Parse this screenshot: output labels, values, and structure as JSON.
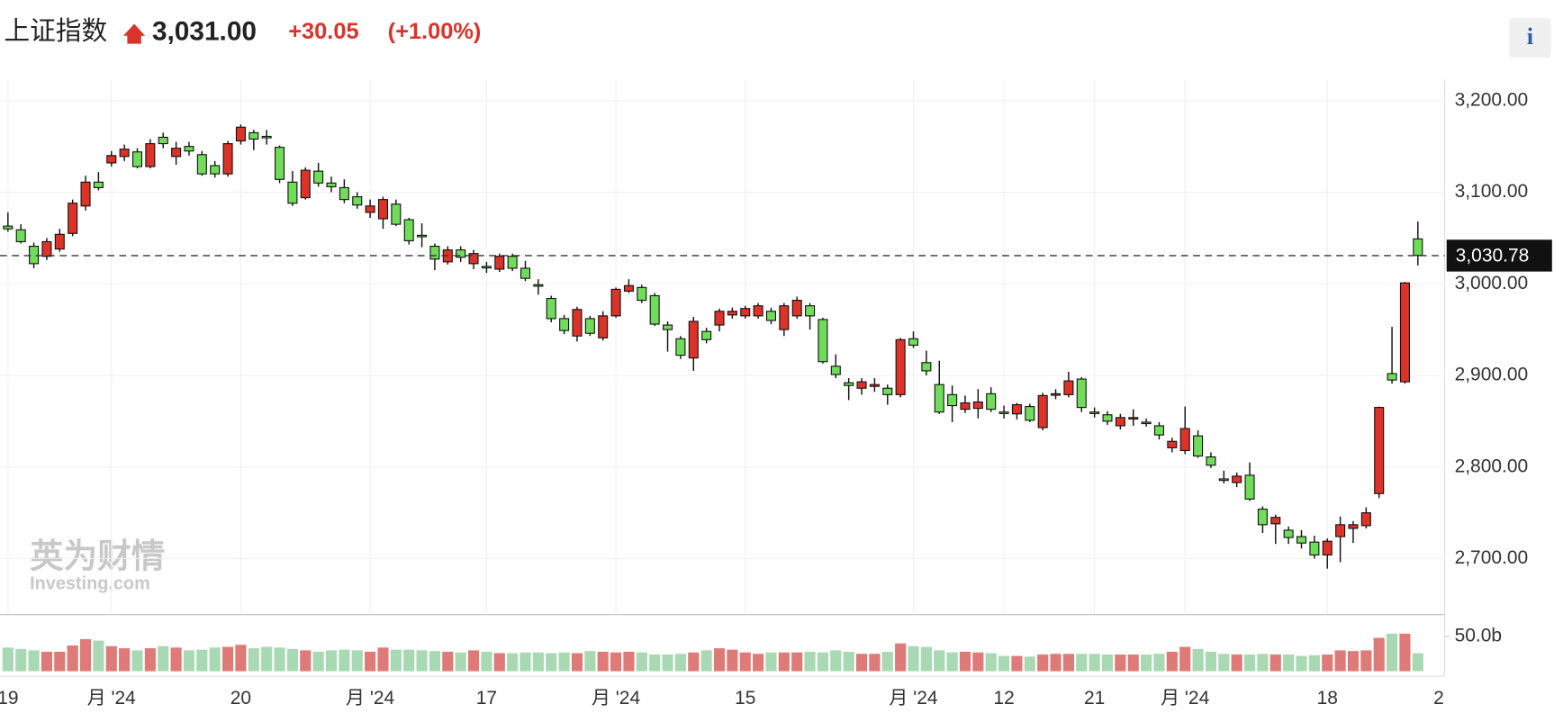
{
  "header": {
    "title": "上证指数",
    "price": "3,031.00",
    "change": "+30.05",
    "change_pct": "(+1.00%)",
    "info": "i"
  },
  "watermark": {
    "cn": "英为财情",
    "en": "Investing.com"
  },
  "chart_data": {
    "type": "candlestick",
    "up_color": "#dd3228",
    "down_color": "#6fdc5a",
    "volume_up_color": "#de7b78",
    "volume_down_color": "#a9d9b3",
    "ylim": [
      2640,
      3223
    ],
    "yticks": [
      {
        "value": 2700,
        "label": "2,700.00"
      },
      {
        "value": 2800,
        "label": "2,800.00"
      },
      {
        "value": 2900,
        "label": "2,900.00"
      },
      {
        "value": 3000,
        "label": "3,000.00"
      },
      {
        "value": 3100,
        "label": "3,100.00"
      },
      {
        "value": 3200,
        "label": "3,200.00"
      }
    ],
    "last_price": {
      "value": 3030.78,
      "label": "3,030.78"
    },
    "vlim": [
      0,
      80
    ],
    "vticks": [
      {
        "value": 50,
        "label": "50.0b"
      }
    ],
    "next_label": "2",
    "grid": true,
    "categories": [
      "19",
      null,
      null,
      null,
      null,
      null,
      null,
      null,
      "月 '24",
      null,
      null,
      null,
      null,
      null,
      null,
      null,
      null,
      null,
      "20",
      null,
      null,
      null,
      null,
      null,
      null,
      null,
      null,
      null,
      "月 '24",
      null,
      null,
      null,
      null,
      null,
      null,
      null,
      null,
      "17",
      null,
      null,
      null,
      null,
      null,
      null,
      null,
      null,
      null,
      "月 '24",
      null,
      null,
      null,
      null,
      null,
      null,
      null,
      null,
      null,
      "15",
      null,
      null,
      null,
      null,
      null,
      null,
      null,
      null,
      null,
      null,
      null,
      null,
      "月 '24",
      null,
      null,
      null,
      null,
      null,
      null,
      "12",
      null,
      null,
      null,
      null,
      null,
      null,
      "21",
      null,
      null,
      null,
      null,
      null,
      null,
      "月 '24",
      null,
      null,
      null,
      null,
      null,
      null,
      null,
      null,
      null,
      null,
      "18",
      null,
      null,
      null,
      null,
      null,
      null,
      null
    ],
    "open": [
      3063,
      3059,
      3041,
      3030,
      3038,
      3055,
      3085,
      3111,
      3132,
      3139,
      3144,
      3128,
      3160,
      3139,
      3150,
      3141,
      3129,
      3120,
      3156,
      3165,
      3161,
      3149,
      3111,
      3094,
      3123,
      3110,
      3105,
      3095,
      3078,
      3071,
      3087,
      3070,
      3053,
      3041,
      3024,
      3037,
      3022,
      3019,
      3016,
      3030,
      3017,
      2999,
      2984,
      2962,
      2943,
      2962,
      2941,
      2965,
      2992,
      2996,
      2987,
      2955,
      2940,
      2919,
      2948,
      2955,
      2966,
      2965,
      2965,
      2970,
      2950,
      2965,
      2976,
      2961,
      2910,
      2892,
      2886,
      2888,
      2886,
      2879,
      2940,
      2914,
      2890,
      2879,
      2863,
      2864,
      2880,
      2860,
      2858,
      2866,
      2843,
      2879,
      2879,
      2896,
      2860,
      2857,
      2845,
      2853,
      2849,
      2845,
      2821,
      2818,
      2834,
      2811,
      2787,
      2783,
      2791,
      2754,
      2738,
      2731,
      2724,
      2718,
      2704,
      2724,
      2733,
      2736,
      2771,
      2902,
      2893,
      3049
    ],
    "high": [
      3078,
      3065,
      3045,
      3050,
      3060,
      3092,
      3118,
      3122,
      3145,
      3152,
      3148,
      3158,
      3165,
      3155,
      3155,
      3145,
      3134,
      3156,
      3174,
      3168,
      3168,
      3151,
      3123,
      3127,
      3132,
      3117,
      3114,
      3100,
      3092,
      3095,
      3092,
      3072,
      3066,
      3044,
      3041,
      3041,
      3037,
      3024,
      3033,
      3033,
      3025,
      3005,
      2987,
      2966,
      2975,
      2965,
      2970,
      2996,
      3005,
      2999,
      2990,
      2959,
      2943,
      2964,
      2952,
      2973,
      2974,
      2976,
      2979,
      2974,
      2979,
      2986,
      2979,
      2963,
      2923,
      2897,
      2897,
      2897,
      2890,
      2941,
      2948,
      2927,
      2916,
      2889,
      2878,
      2885,
      2887,
      2867,
      2870,
      2869,
      2881,
      2885,
      2904,
      2898,
      2865,
      2861,
      2858,
      2863,
      2853,
      2849,
      2832,
      2866,
      2840,
      2816,
      2796,
      2794,
      2805,
      2757,
      2748,
      2735,
      2731,
      2725,
      2722,
      2746,
      2741,
      2756,
      2866,
      2953,
      3002,
      3068
    ],
    "low": [
      3057,
      3044,
      3017,
      3026,
      3035,
      3052,
      3080,
      3102,
      3128,
      3134,
      3126,
      3126,
      3148,
      3130,
      3140,
      3118,
      3116,
      3117,
      3152,
      3146,
      3152,
      3110,
      3085,
      3092,
      3106,
      3100,
      3088,
      3082,
      3072,
      3060,
      3063,
      3043,
      3040,
      3015,
      3021,
      3024,
      3016,
      3012,
      3013,
      3014,
      3003,
      2988,
      2958,
      2945,
      2937,
      2943,
      2938,
      2963,
      2990,
      2979,
      2954,
      2926,
      2918,
      2905,
      2935,
      2948,
      2962,
      2962,
      2962,
      2956,
      2943,
      2962,
      2950,
      2913,
      2897,
      2873,
      2879,
      2882,
      2868,
      2876,
      2930,
      2900,
      2858,
      2849,
      2859,
      2853,
      2860,
      2853,
      2852,
      2849,
      2840,
      2874,
      2876,
      2860,
      2854,
      2846,
      2841,
      2845,
      2844,
      2830,
      2816,
      2814,
      2810,
      2799,
      2782,
      2778,
      2763,
      2728,
      2716,
      2716,
      2711,
      2700,
      2689,
      2696,
      2717,
      2733,
      2766,
      2891,
      2891,
      3020
    ],
    "close": [
      3060,
      3046,
      3022,
      3046,
      3054,
      3088,
      3111,
      3105,
      3140,
      3147,
      3128,
      3153,
      3153,
      3148,
      3145,
      3120,
      3120,
      3153,
      3171,
      3158,
      3160,
      3114,
      3088,
      3124,
      3110,
      3106,
      3092,
      3086,
      3085,
      3092,
      3065,
      3047,
      3052,
      3027,
      3037,
      3029,
      3033,
      3018,
      3030,
      3017,
      3006,
      2998,
      2962,
      2949,
      2972,
      2946,
      2965,
      2994,
      2998,
      2982,
      2956,
      2950,
      2922,
      2959,
      2939,
      2970,
      2970,
      2973,
      2976,
      2960,
      2976,
      2982,
      2965,
      2915,
      2901,
      2889,
      2893,
      2890,
      2879,
      2939,
      2933,
      2905,
      2860,
      2867,
      2870,
      2871,
      2863,
      2859,
      2868,
      2851,
      2878,
      2880,
      2894,
      2865,
      2859,
      2850,
      2854,
      2854,
      2848,
      2835,
      2828,
      2842,
      2812,
      2802,
      2786,
      2790,
      2765,
      2737,
      2745,
      2723,
      2717,
      2704,
      2719,
      2737,
      2737,
      2750,
      2865,
      2895,
      3001,
      3031
    ],
    "volume": [
      34,
      32,
      30,
      28,
      28,
      37,
      46,
      44,
      36,
      33,
      30,
      33,
      36,
      34,
      30,
      31,
      34,
      35,
      38,
      33,
      35,
      34,
      32,
      30,
      28,
      30,
      31,
      30,
      28,
      34,
      31,
      31,
      30,
      29,
      28,
      27,
      30,
      28,
      26,
      26,
      27,
      27,
      26,
      27,
      26,
      29,
      28,
      27,
      28,
      27,
      24,
      24,
      25,
      27,
      30,
      33,
      31,
      27,
      25,
      27,
      27,
      27,
      28,
      27,
      30,
      28,
      25,
      25,
      28,
      40,
      36,
      35,
      30,
      27,
      28,
      27,
      26,
      22,
      22,
      21,
      24,
      25,
      25,
      25,
      25,
      24,
      24,
      24,
      24,
      25,
      28,
      35,
      32,
      28,
      25,
      24,
      24,
      25,
      24,
      24,
      22,
      23,
      24,
      30,
      29,
      30,
      48,
      54,
      54,
      26
    ]
  }
}
